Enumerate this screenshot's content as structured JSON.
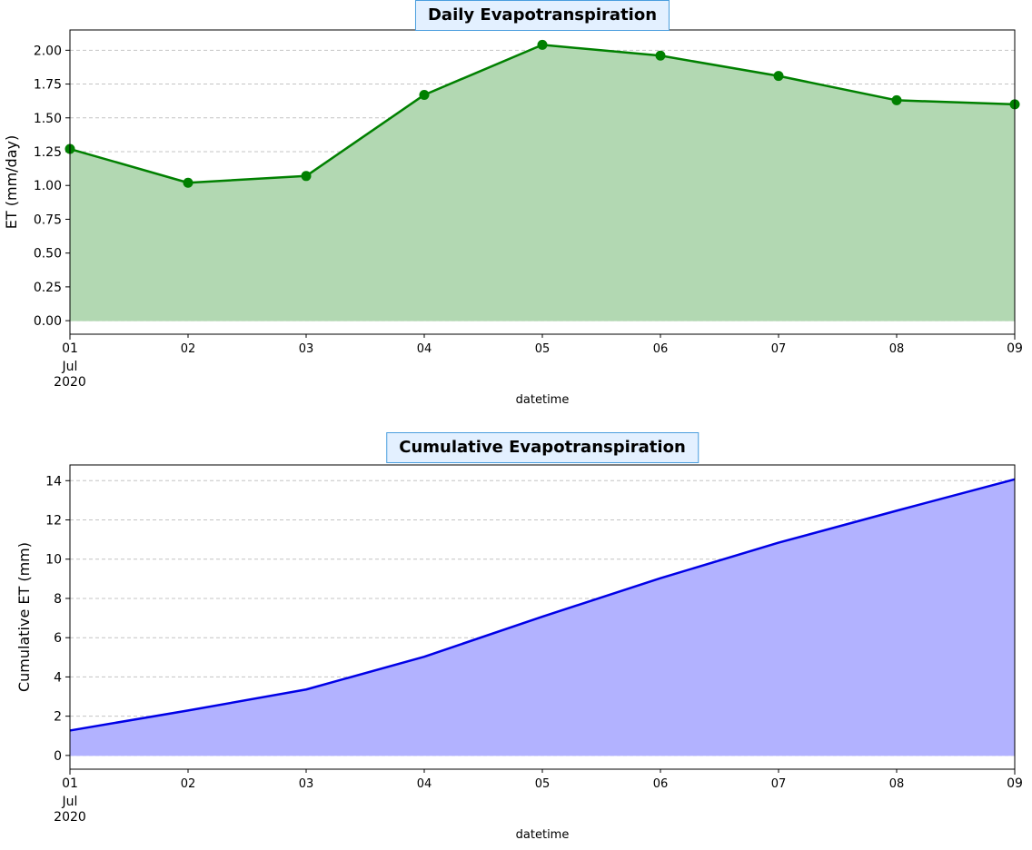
{
  "chart_data": [
    {
      "type": "area",
      "title": "Daily Evapotranspiration",
      "xlabel": "datetime",
      "ylabel": "ET (mm/day)",
      "x": [
        "01",
        "02",
        "03",
        "04",
        "05",
        "06",
        "07",
        "08",
        "09"
      ],
      "x_sub": [
        "Jul",
        "2020"
      ],
      "series": [
        {
          "values": [
            1.27,
            1.02,
            1.07,
            1.67,
            2.04,
            1.96,
            1.81,
            1.63,
            1.6
          ]
        }
      ],
      "markers": true,
      "ylim": [
        -0.1,
        2.15
      ],
      "yticks": [
        "0.00",
        "0.25",
        "0.50",
        "0.75",
        "1.00",
        "1.25",
        "1.50",
        "1.75",
        "2.00"
      ],
      "grid": "horizontal dashed",
      "line_color": "#008000",
      "fill_color": "#b2d8b2"
    },
    {
      "type": "area",
      "title": "Cumulative Evapotranspiration",
      "xlabel": "datetime",
      "ylabel": "Cumulative ET (mm)",
      "x": [
        "01",
        "02",
        "03",
        "04",
        "05",
        "06",
        "07",
        "08",
        "09"
      ],
      "x_sub": [
        "Jul",
        "2020"
      ],
      "series": [
        {
          "values": [
            1.27,
            2.29,
            3.36,
            5.03,
            7.07,
            9.03,
            10.84,
            12.47,
            14.07
          ]
        }
      ],
      "markers": false,
      "ylim": [
        -0.7,
        14.8
      ],
      "yticks": [
        "0",
        "2",
        "4",
        "6",
        "8",
        "10",
        "12",
        "14"
      ],
      "grid": "horizontal dashed",
      "line_color": "#0000e6",
      "fill_color": "#b2b2ff"
    }
  ]
}
